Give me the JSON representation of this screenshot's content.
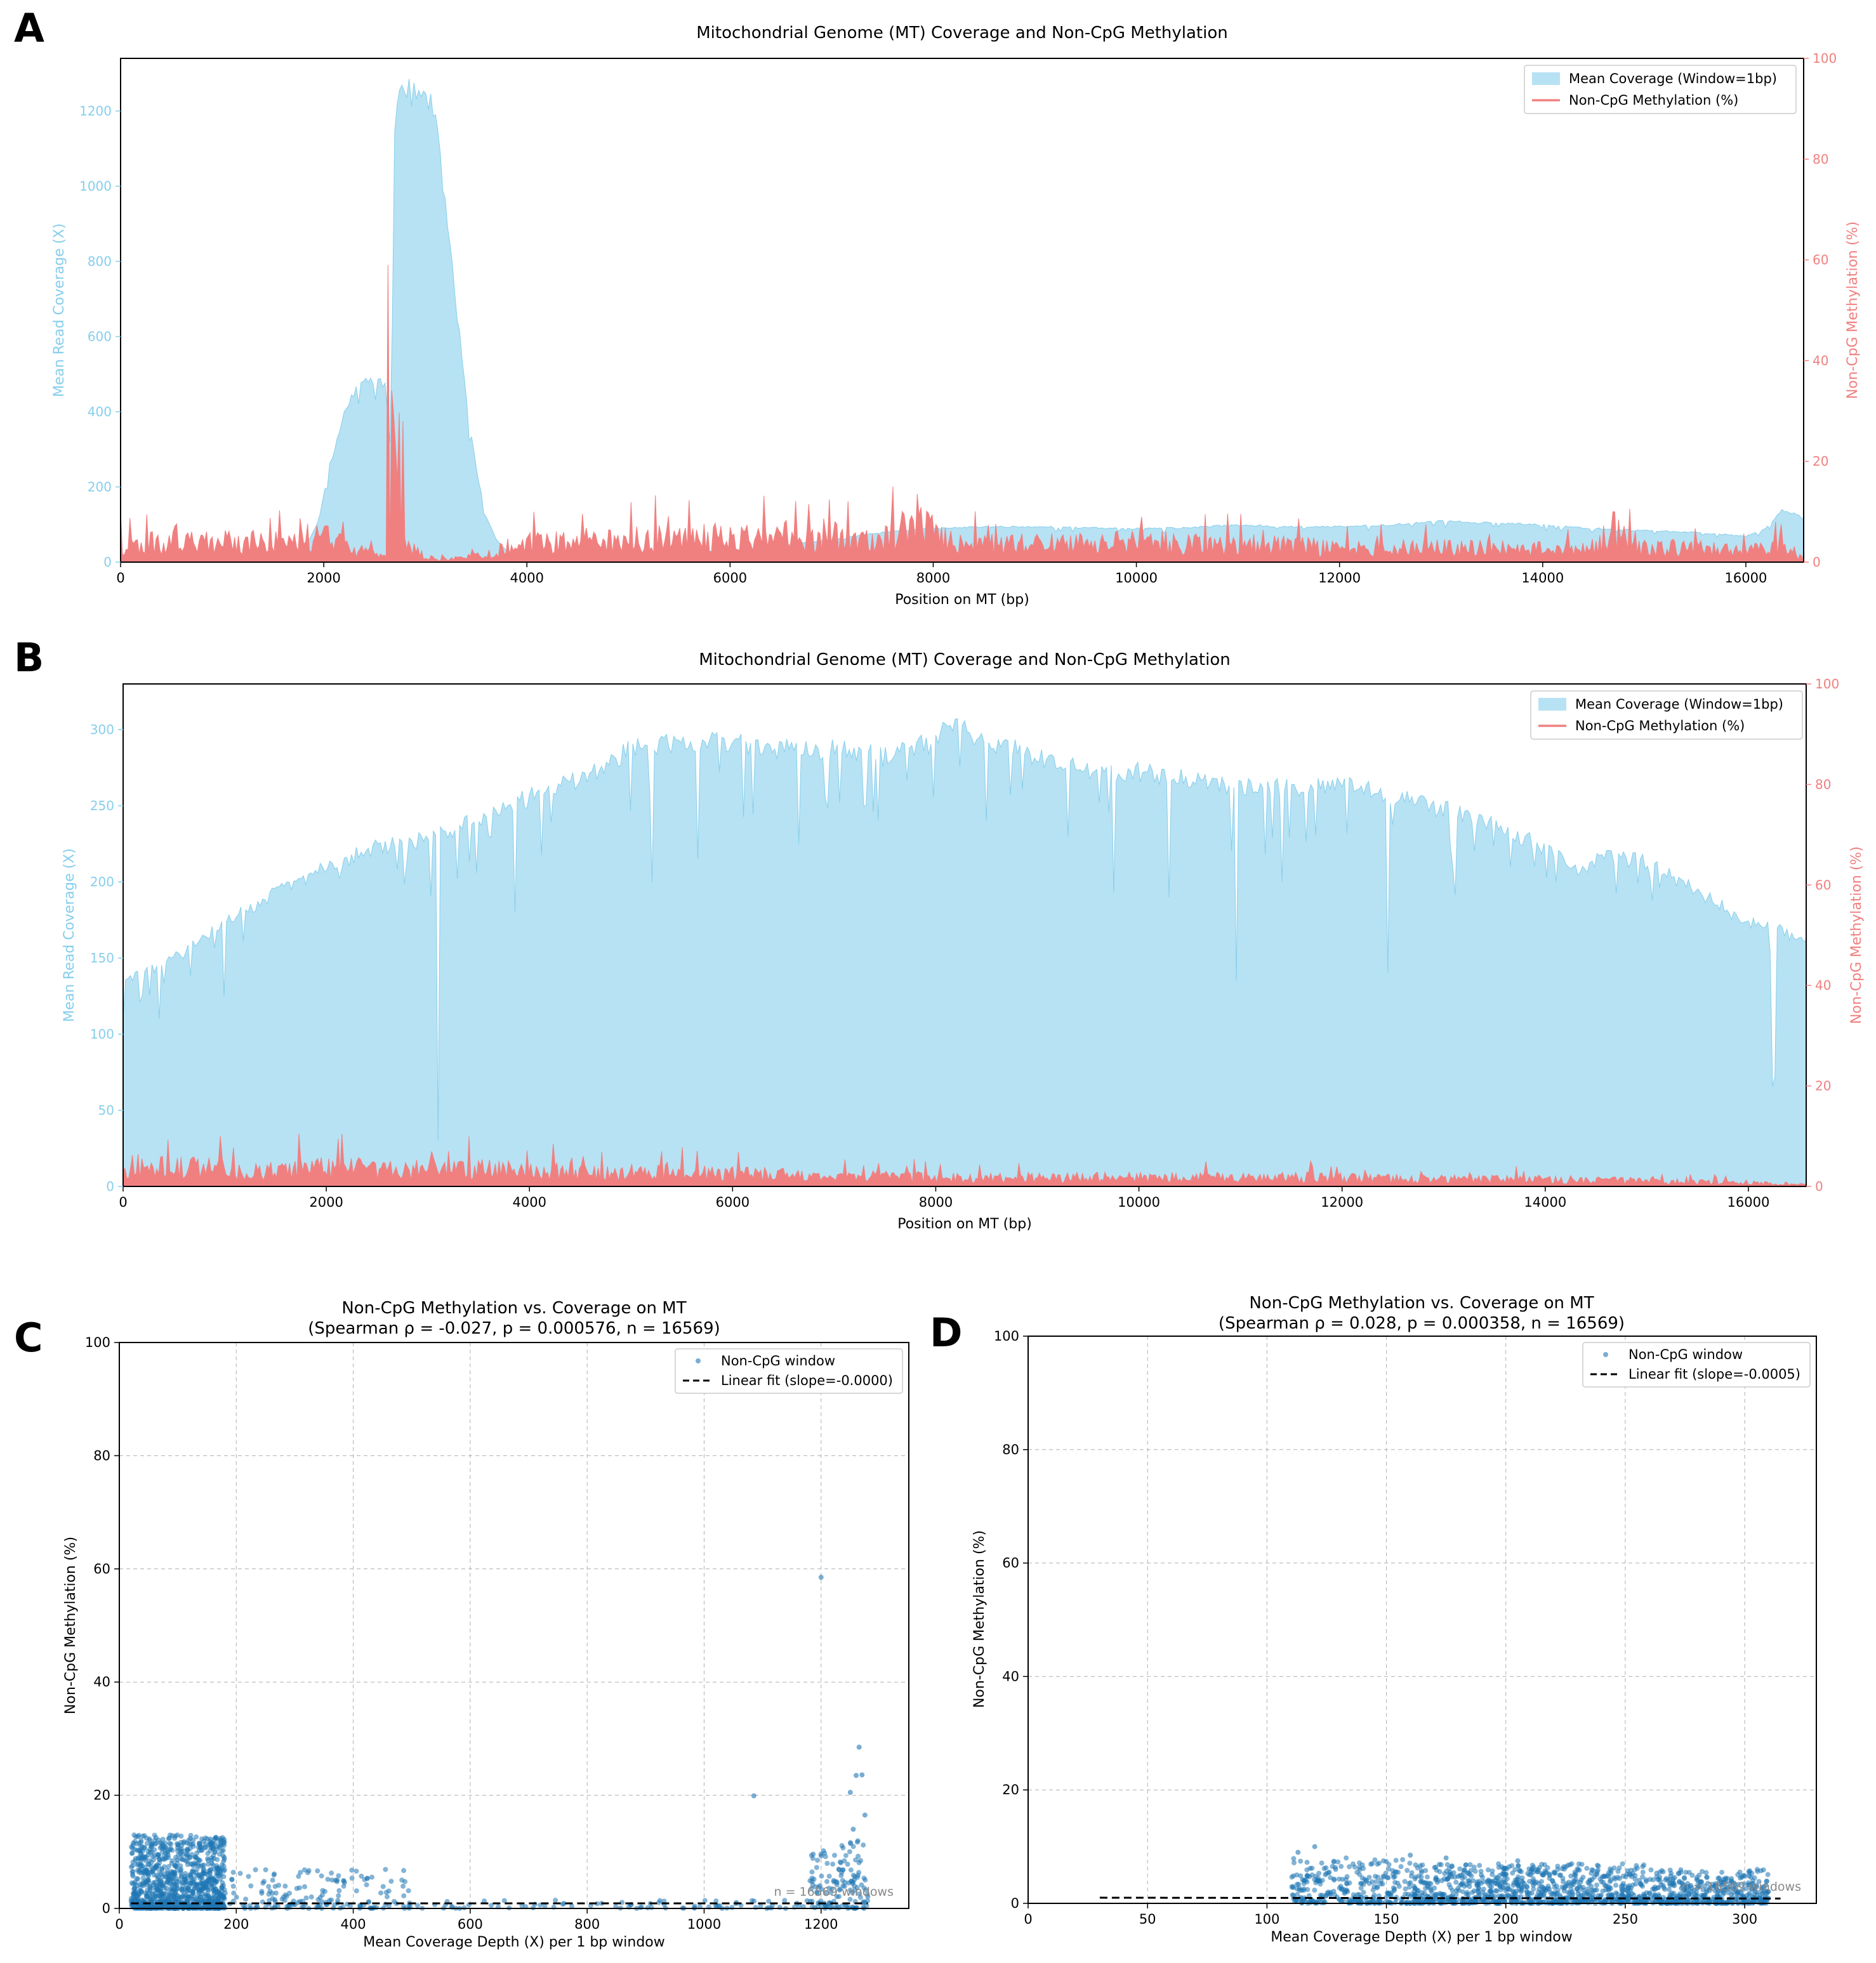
{
  "panels": [
    {
      "id": "A",
      "label": "A"
    },
    {
      "id": "B",
      "label": "B"
    },
    {
      "id": "C",
      "label": "C"
    },
    {
      "id": "D",
      "label": "D"
    }
  ],
  "colors": {
    "coverage": "#87ceeb",
    "methylation": "#f08080",
    "scatter": "#1f77b4",
    "fit": "#000000",
    "frame": "#000000",
    "grid": "#b0b0b0"
  },
  "chart_data": [
    {
      "panel": "A",
      "type": "area",
      "title": "Mitochondrial Genome (MT) Coverage and Non-CpG Methylation",
      "xlabel": "Position on MT (bp)",
      "ylabel_left": "Mean Read Coverage (X)",
      "ylabel_right": "Non-CpG Methylation (%)",
      "xlim": [
        0,
        16569
      ],
      "ylim_left": [
        0,
        1340
      ],
      "ylim_right": [
        0,
        100
      ],
      "xticks": [
        0,
        2000,
        4000,
        6000,
        8000,
        10000,
        12000,
        14000,
        16000
      ],
      "yticks_left": [
        0,
        200,
        400,
        600,
        800,
        1000,
        1200
      ],
      "yticks_right": [
        0,
        20,
        40,
        60,
        80,
        100
      ],
      "legend": {
        "placement": "top-right",
        "entries": [
          "Mean Coverage (Window=1bp)",
          "Non-CpG Methylation (%)"
        ]
      },
      "series": [
        {
          "name": "Mean Coverage (Window=1bp)",
          "kind": "fill",
          "axis": "left",
          "x": [
            0,
            500,
            1000,
            1500,
            1800,
            1950,
            2050,
            2200,
            2350,
            2500,
            2600,
            2660,
            2700,
            2750,
            2800,
            2900,
            3000,
            3100,
            3200,
            3300,
            3400,
            3500,
            3600,
            3700,
            3800,
            4000,
            5000,
            6000,
            7000,
            7500,
            8000,
            8500,
            9000,
            9500,
            10000,
            10500,
            11000,
            11500,
            12000,
            12500,
            13000,
            13500,
            14000,
            14500,
            15000,
            15500,
            16000,
            16200,
            16350,
            16500,
            16569
          ],
          "y": [
            5,
            5,
            5,
            10,
            30,
            110,
            250,
            400,
            480,
            490,
            480,
            300,
            1200,
            1270,
            1280,
            1275,
            1260,
            1200,
            950,
            700,
            450,
            250,
            120,
            60,
            30,
            20,
            25,
            30,
            60,
            80,
            90,
            95,
            95,
            92,
            90,
            92,
            100,
            95,
            95,
            100,
            110,
            105,
            100,
            90,
            85,
            80,
            70,
            90,
            140,
            130,
            115
          ]
        },
        {
          "name": "Non-CpG Methylation (%)",
          "kind": "spikes",
          "axis": "right",
          "x": [
            0,
            500,
            1000,
            1500,
            1900,
            2100,
            2300,
            2500,
            2650,
            2680,
            2700,
            2750,
            2800,
            3000,
            3300,
            3600,
            3900,
            4500,
            5000,
            5500,
            6000,
            6500,
            7000,
            7500,
            7850,
            8200,
            8800,
            9500,
            10000,
            10500,
            11000,
            11500,
            12000,
            12500,
            13000,
            13500,
            14000,
            14500,
            14750,
            15000,
            15500,
            16000,
            16300,
            16569
          ],
          "y": [
            5,
            5.5,
            5.5,
            5.5,
            7,
            6,
            4,
            2,
            1,
            59,
            20,
            28,
            8,
            1,
            1,
            2,
            5,
            6,
            6.5,
            7,
            7,
            6.5,
            6,
            6,
            11,
            5,
            5,
            5,
            6,
            5,
            5,
            4.5,
            4,
            4,
            4,
            4,
            3.5,
            4,
            8,
            4,
            4,
            3,
            5,
            1
          ],
          "peaks": [
            [
              0,
              10
            ],
            [
              2640,
              59
            ],
            [
              2780,
              28
            ],
            [
              7850,
              13.5
            ],
            [
              10050,
              9
            ],
            [
              14700,
              10
            ],
            [
              16300,
              8
            ]
          ]
        }
      ]
    },
    {
      "panel": "B",
      "type": "area",
      "title": "Mitochondrial Genome (MT) Coverage and Non-CpG Methylation",
      "xlabel": "Position on MT (bp)",
      "ylabel_left": "Mean Read Coverage (X)",
      "ylabel_right": "Non-CpG Methylation (%)",
      "xlim": [
        0,
        16569
      ],
      "ylim_left": [
        0,
        330
      ],
      "ylim_right": [
        0,
        100
      ],
      "xticks": [
        0,
        2000,
        4000,
        6000,
        8000,
        10000,
        12000,
        14000,
        16000
      ],
      "yticks_left": [
        0,
        50,
        100,
        150,
        200,
        250,
        300
      ],
      "yticks_right": [
        0,
        20,
        40,
        60,
        80,
        100
      ],
      "legend": {
        "placement": "top-right",
        "entries": [
          "Mean Coverage (Window=1bp)",
          "Non-CpG Methylation (%)"
        ]
      },
      "series": [
        {
          "name": "Mean Coverage (Window=1bp)",
          "kind": "fill",
          "axis": "left",
          "x": [
            0,
            300,
            600,
            1000,
            1500,
            2000,
            2500,
            3000,
            3500,
            4000,
            4500,
            5000,
            5500,
            6000,
            6500,
            7000,
            7500,
            8000,
            8100,
            8500,
            9000,
            9500,
            10000,
            10500,
            11000,
            11500,
            12000,
            12500,
            13000,
            13500,
            14000,
            14300,
            14600,
            15000,
            15500,
            16000,
            16300,
            16569
          ],
          "y": [
            135,
            145,
            155,
            175,
            195,
            212,
            225,
            230,
            245,
            258,
            270,
            290,
            295,
            295,
            290,
            290,
            285,
            295,
            310,
            295,
            285,
            275,
            275,
            270,
            265,
            265,
            268,
            260,
            250,
            240,
            225,
            208,
            220,
            215,
            195,
            175,
            170,
            160
          ],
          "dips": [
            [
              0,
              110
            ],
            [
              350,
              110
            ],
            [
              1000,
              125
            ],
            [
              3100,
              30
            ],
            [
              3850,
              180
            ],
            [
              5200,
              200
            ],
            [
              5650,
              230
            ],
            [
              6650,
              225
            ],
            [
              7300,
              250
            ],
            [
              8500,
              240
            ],
            [
              9300,
              230
            ],
            [
              9750,
              220
            ],
            [
              10300,
              190
            ],
            [
              10950,
              135
            ],
            [
              11400,
              200
            ],
            [
              12450,
              140
            ],
            [
              13100,
              210
            ],
            [
              14100,
              200
            ],
            [
              16250,
              72
            ]
          ]
        },
        {
          "name": "Non-CpG Methylation (%)",
          "kind": "spikes",
          "axis": "right",
          "x": [
            0,
            1000,
            2000,
            3000,
            4000,
            5000,
            6000,
            7000,
            8000,
            9000,
            10000,
            11000,
            12000,
            13000,
            14000,
            15000,
            16000,
            16569
          ],
          "y": [
            6,
            5,
            5,
            5,
            4.5,
            4,
            3.5,
            3,
            2.5,
            2.5,
            2.5,
            2.5,
            2.5,
            2,
            2,
            1.5,
            1,
            0.5
          ],
          "peaks": [
            [
              950,
              10
            ],
            [
              3200,
              7
            ],
            [
              5300,
              7
            ],
            [
              7900,
              5
            ],
            [
              11900,
              4
            ]
          ]
        }
      ]
    },
    {
      "panel": "C",
      "type": "scatter",
      "title": "Non-CpG Methylation vs. Coverage on MT",
      "subtitle": "(Spearman ρ = -0.027,  p = 0.000576,  n = 16569)",
      "xlabel": "Mean Coverage Depth (X) per 1 bp window",
      "ylabel": "Non-CpG Methylation (%)",
      "xlim": [
        0,
        1350
      ],
      "ylim": [
        0,
        100
      ],
      "xticks": [
        0,
        200,
        400,
        600,
        800,
        1000,
        1200
      ],
      "yticks": [
        0,
        20,
        40,
        60,
        80,
        100
      ],
      "grid": true,
      "annotation": "n = 16569 windows",
      "legend": {
        "placement": "top-right",
        "entries": [
          "Non-CpG window",
          "Linear fit (slope=-0.0000)"
        ]
      },
      "series": [
        {
          "name": "Non-CpG window",
          "kind": "points",
          "clusters": [
            {
              "x_range": [
                20,
                180
              ],
              "y_max": 13,
              "weight": 0.72
            },
            {
              "x_range": [
                180,
                500
              ],
              "y_max": 7,
              "weight": 0.12
            },
            {
              "x_range": [
                1180,
                1280
              ],
              "y_max": 12,
              "weight": 0.1
            },
            {
              "x_range": [
                500,
                1180
              ],
              "y_max": 1.5,
              "weight": 0.06
            }
          ],
          "outliers": [
            [
              1200,
              58.5
            ],
            [
              1265,
              28.5
            ],
            [
              1085,
              19.9
            ],
            [
              1260,
              23.5
            ],
            [
              1270,
              23.6
            ],
            [
              1250,
              20.5
            ],
            [
              1275,
              16.5
            ],
            [
              1255,
              14
            ]
          ]
        },
        {
          "name": "Linear fit (slope=-0.0000)",
          "kind": "line",
          "x": [
            20,
            1280
          ],
          "y": [
            0.9,
            0.9
          ]
        }
      ]
    },
    {
      "panel": "D",
      "type": "scatter",
      "title": "Non-CpG Methylation vs. Coverage on MT",
      "subtitle": "(Spearman ρ = 0.028,  p = 0.000358,  n = 16569)",
      "xlabel": "Mean Coverage Depth (X) per 1 bp window",
      "ylabel": "Non-CpG Methylation (%)",
      "xlim": [
        0,
        330
      ],
      "ylim": [
        0,
        100
      ],
      "xticks": [
        0,
        50,
        100,
        150,
        200,
        250,
        300
      ],
      "yticks": [
        0,
        20,
        40,
        60,
        80,
        100
      ],
      "grid": true,
      "annotation": "n = 16569 windows",
      "legend": {
        "placement": "top-right",
        "entries": [
          "Non-CpG window",
          "Linear fit (slope=-0.0005)"
        ]
      },
      "series": [
        {
          "name": "Non-CpG window",
          "kind": "points",
          "clusters": [
            {
              "x_range": [
                110,
                160
              ],
              "y_max": 8,
              "weight": 0.18
            },
            {
              "x_range": [
                160,
                260
              ],
              "y_max": 7,
              "weight": 0.55
            },
            {
              "x_range": [
                260,
                310
              ],
              "y_max": 6,
              "weight": 0.27
            }
          ],
          "outliers": [
            [
              120,
              10
            ],
            [
              113,
              9
            ],
            [
              160,
              8.5
            ],
            [
              205,
              7.5
            ],
            [
              175,
              8
            ]
          ]
        },
        {
          "name": "Linear fit (slope=-0.0005)",
          "kind": "line",
          "x": [
            30,
            315
          ],
          "y": [
            1.0,
            0.85
          ]
        }
      ]
    }
  ]
}
